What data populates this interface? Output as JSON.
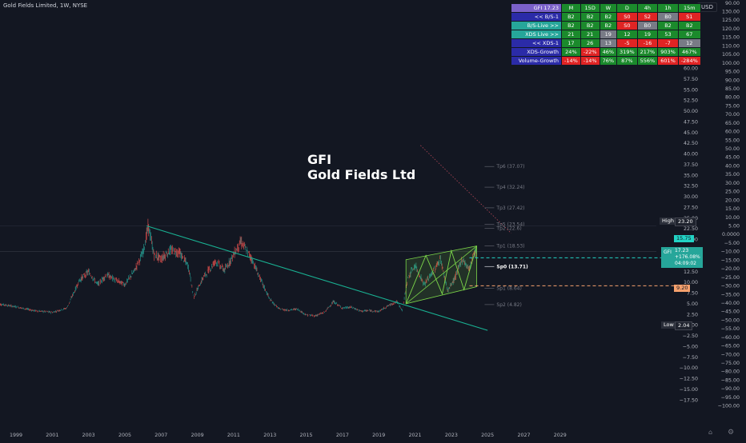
{
  "header": {
    "title": "Gold Fields Limited, 1W, NYSE",
    "currency": "USD"
  },
  "overlay_title": {
    "line1": "GFI",
    "line2": "Gold Fields Ltd"
  },
  "badge": {
    "symbol": "GFI",
    "price": "17.23",
    "change": "+176.08%",
    "countdown": "04:09:02"
  },
  "price_tags": {
    "high_label": "High",
    "high_value": "23.20",
    "low_label": "Low",
    "low_value": "2.04",
    "upper_line_value": "15.75",
    "lower_line_value": "9.20"
  },
  "colors": {
    "background": "#131722",
    "up": "#26a69a",
    "down": "#ef5350",
    "channel": "#7cd64a",
    "trendline": "#19b394",
    "dashed_cyan": "#22d3c5",
    "dashed_orange": "#f6a16d",
    "axis_text": "#b2b5be"
  },
  "info_table": {
    "columns": [
      "GFI_17.23",
      "M",
      "15D",
      "W",
      "D",
      "4h",
      "1h",
      "15m"
    ],
    "rows": [
      {
        "label": "<< B/S-1",
        "cells": [
          "B2",
          "B2",
          "B2",
          "S0",
          "S2",
          "B0",
          "S1"
        ],
        "colors": [
          "#1b8a2c",
          "#1b8a2c",
          "#1b8a2c",
          "#e02424",
          "#e02424",
          "#787b86",
          "#e02424"
        ]
      },
      {
        "label": "B/S-Live >>",
        "cells": [
          "B2",
          "B2",
          "B2",
          "S0",
          "B0",
          "B2",
          "B2"
        ],
        "colors": [
          "#1b8a2c",
          "#1b8a2c",
          "#1b8a2c",
          "#e02424",
          "#787b86",
          "#1b8a2c",
          "#1b8a2c"
        ]
      },
      {
        "label": "XDS Live >>",
        "cells": [
          "21",
          "21",
          "19",
          "12",
          "19",
          "53",
          "67"
        ],
        "colors": [
          "#1b8a2c",
          "#1b8a2c",
          "#787b86",
          "#1b8a2c",
          "#1b8a2c",
          "#1b8a2c",
          "#1b8a2c"
        ]
      },
      {
        "label": "<< XDS-1",
        "cells": [
          "17",
          "26",
          "13",
          "-5",
          "-16",
          "-7",
          "12"
        ],
        "colors": [
          "#1b8a2c",
          "#1b8a2c",
          "#787b86",
          "#e02424",
          "#e02424",
          "#e02424",
          "#787b86"
        ]
      },
      {
        "label": "XDS-Growth",
        "cells": [
          "24%",
          "-22%",
          "46%",
          "319%",
          "217%",
          "903%",
          "467%"
        ],
        "colors": [
          "#1b8a2c",
          "#e02424",
          "#1b8a2c",
          "#1b8a2c",
          "#1b8a2c",
          "#1b8a2c",
          "#1b8a2c"
        ]
      },
      {
        "label": "Volume-Growth",
        "cells": [
          "-14%",
          "-14%",
          "76%",
          "87%",
          "556%",
          "601%",
          "-284%"
        ],
        "colors": [
          "#e02424",
          "#e02424",
          "#1b8a2c",
          "#1b8a2c",
          "#1b8a2c",
          "#e02424",
          "#e02424"
        ]
      }
    ]
  },
  "chart_data": {
    "type": "line",
    "price_axis": [
      "65.00",
      "62.50",
      "60.00",
      "57.50",
      "55.00",
      "52.50",
      "50.00",
      "47.50",
      "45.00",
      "42.50",
      "40.00",
      "37.50",
      "35.00",
      "32.50",
      "30.00",
      "27.50",
      "25.00",
      "22.50",
      "20.00",
      "17.50",
      "15.00",
      "12.50",
      "10.00",
      "7.50",
      "5.00",
      "2.50",
      "0.0000",
      "−2.50",
      "−5.00",
      "−7.50",
      "−10.00",
      "−12.50",
      "−15.00",
      "−17.50"
    ],
    "percent_axis": [
      "130.00",
      "125.00",
      "120.00",
      "115.00",
      "110.00",
      "105.00",
      "100.00",
      "95.00",
      "90.00",
      "85.00",
      "80.00",
      "75.00",
      "70.00",
      "65.00",
      "60.00",
      "55.00",
      "50.00",
      "45.00",
      "40.00",
      "35.00",
      "30.00",
      "25.00",
      "20.00",
      "15.00",
      "10.00",
      "5.00",
      "0.0000",
      "−5.00",
      "−10.00",
      "−15.00",
      "−20.00",
      "−25.00",
      "−30.00",
      "−35.00",
      "−40.00",
      "−45.00",
      "−50.00",
      "−55.00",
      "−60.00",
      "−65.00",
      "−70.00",
      "−75.00",
      "−80.00",
      "−85.00",
      "−90.00",
      "−95.00",
      "−100.00"
    ],
    "percent_axis_extra_top": "90.00",
    "x_ticks": [
      "1999",
      "2001",
      "2003",
      "2005",
      "2007",
      "2009",
      "2011",
      "2013",
      "2015",
      "2017",
      "2019",
      "2021",
      "2023",
      "2025",
      "2027",
      "2029"
    ],
    "targets": [
      {
        "label": "Tp6 (37.07)",
        "value": 37.07
      },
      {
        "label": "Tp4 (32.24)",
        "value": 32.24
      },
      {
        "label": "Tp3 (27.42)",
        "value": 27.42
      },
      {
        "label": "Tp5 (23.54)",
        "value": 23.54
      },
      {
        "label": "Tp2 (22.6)",
        "value": 22.6
      },
      {
        "label": "Tp1 (18.53)",
        "value": 18.53
      },
      {
        "label": "Sp0 (13.71)",
        "value": 13.71
      },
      {
        "label": "Sp1 (8.64)",
        "value": 8.64
      },
      {
        "label": "Sp2 (4.82)",
        "value": 4.82
      }
    ],
    "series": [
      {
        "x": [
          1998.0,
          1999.0,
          2000.0,
          2001.0,
          2001.8,
          2002.5,
          2003.0,
          2003.5,
          2004.0,
          2004.5,
          2005.0,
          2005.5,
          2006.0,
          2006.3,
          2006.6,
          2007.0,
          2007.5,
          2008.0,
          2008.5,
          2008.8,
          2009.3,
          2010.0,
          2010.5,
          2011.0,
          2011.4,
          2012.0,
          2012.5,
          2013.0,
          2013.5,
          2014.0,
          2014.5,
          2015.0,
          2015.5,
          2016.0,
          2016.5,
          2017.0,
          2017.5,
          2018.0,
          2018.5,
          2019.0,
          2019.5,
          2020.0,
          2020.3,
          2020.6,
          2021.0,
          2021.5,
          2022.0,
          2022.4,
          2022.8,
          2023.2,
          2023.6,
          2024.0,
          2024.2,
          2024.4
        ],
        "y": [
          5.0,
          4.3,
          3.4,
          3.0,
          4.0,
          10.5,
          12.5,
          9.5,
          11.8,
          10.5,
          9.5,
          12.5,
          17.0,
          23.2,
          16.5,
          15.5,
          17.5,
          17.0,
          13.8,
          6.5,
          11.0,
          15.0,
          12.8,
          16.5,
          19.5,
          15.5,
          10.5,
          6.0,
          3.8,
          3.5,
          3.8,
          2.4,
          2.2,
          3.0,
          5.5,
          4.0,
          4.2,
          3.3,
          3.4,
          3.2,
          4.5,
          5.5,
          3.5,
          11.0,
          14.0,
          9.5,
          12.5,
          15.5,
          8.0,
          11.0,
          15.5,
          13.0,
          16.5,
          17.23
        ]
      }
    ]
  }
}
